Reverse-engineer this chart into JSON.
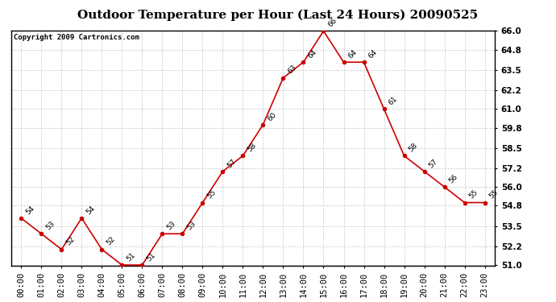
{
  "title": "Outdoor Temperature per Hour (Last 24 Hours) 20090525",
  "copyright": "Copyright 2009 Cartronics.com",
  "hours": [
    "00:00",
    "01:00",
    "02:00",
    "03:00",
    "04:00",
    "05:00",
    "06:00",
    "07:00",
    "08:00",
    "09:00",
    "10:00",
    "11:00",
    "12:00",
    "13:00",
    "14:00",
    "15:00",
    "16:00",
    "17:00",
    "18:00",
    "19:00",
    "20:00",
    "21:00",
    "22:00",
    "23:00"
  ],
  "temps": [
    54,
    53,
    52,
    54,
    52,
    51,
    51,
    53,
    53,
    55,
    57,
    58,
    60,
    63,
    64,
    66,
    64,
    64,
    61,
    58,
    57,
    56,
    55,
    55
  ],
  "line_color": "#cc0000",
  "marker_color": "#cc0000",
  "bg_color": "#ffffff",
  "grid_color": "#c8c8c8",
  "ylim_min": 51.0,
  "ylim_max": 66.0,
  "yticks": [
    51.0,
    52.2,
    53.5,
    54.8,
    56.0,
    57.2,
    58.5,
    59.8,
    61.0,
    62.2,
    63.5,
    64.8,
    66.0
  ],
  "title_fontsize": 11,
  "copyright_fontsize": 6.5,
  "label_fontsize": 6.5,
  "tick_fontsize": 7.5,
  "annot_fontsize": 6.5
}
